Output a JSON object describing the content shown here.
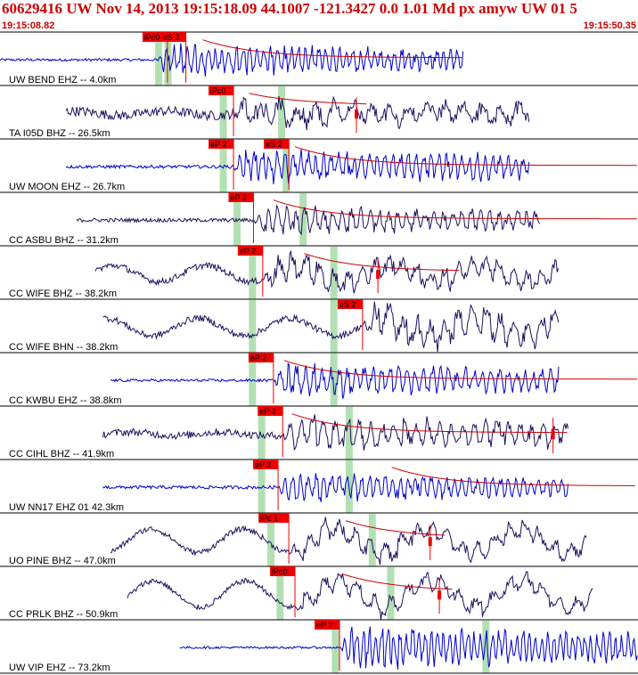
{
  "header": {
    "event_line": "60629416 UW Nov 14, 2013 19:15:18.09    44.1007 -121.3427  0.0 1.01 Md px amyw UW 01    5",
    "start_time": "19:15:08.82",
    "end_time": "19:15:50.35"
  },
  "colors": {
    "header_text": "#cc0000",
    "pick_box": "#ee0000",
    "pick_line": "#ee0000",
    "coda_curve": "#cc0000",
    "window_band": "#b3e0b3",
    "trace_vertical": "#0000cc",
    "trace_long_period": "#201060",
    "divider": "#000000"
  },
  "chart_data": {
    "type": "seismogram-record-section",
    "time_range": [
      "19:15:08.82",
      "19:15:50.35"
    ],
    "time_span_seconds": 41.53,
    "channels": [
      {
        "label": "UW BEND EHZ -- 4.0km",
        "color": "trace_vertical",
        "start_s": 0.0,
        "end_s": 30.2,
        "onset_s": 10.2,
        "amp": 0.75,
        "noise": 0.05,
        "period_s": 0.45,
        "lowfreq": 0,
        "picks": [
          {
            "text": "iPc0",
            "t_s": 10.9
          },
          {
            "text": "eS 2",
            "t_s": 12.1
          }
        ],
        "bands_s": [
          10.1,
          10.7
        ],
        "coda_start_s": 13.2,
        "coda_level": 0.08,
        "coda_end_s": 30.2
      },
      {
        "label": "TA I05D BHZ -- 26.5km",
        "color": "trace_long_period",
        "start_s": 4.3,
        "end_s": 34.5,
        "onset_s": 15.2,
        "amp": 0.55,
        "noise": 0.18,
        "period_s": 1.2,
        "lowfreq": 0.15,
        "picks": [
          {
            "text": "iPc0",
            "t_s": 15.2
          }
        ],
        "bands_s": [
          14.3,
          18.1
        ],
        "coda_start_s": 16.2,
        "coda_level": 0.3,
        "coda_end_s": 24.0,
        "marker_s": 23.2
      },
      {
        "label": "UW MOON EHZ -- 26.7km",
        "color": "trace_vertical",
        "start_s": 4.3,
        "end_s": 34.5,
        "onset_s": 15.2,
        "amp": 0.75,
        "noise": 0.06,
        "period_s": 0.5,
        "lowfreq": 0,
        "picks": [
          {
            "text": "eP 2",
            "t_s": 15.2
          },
          {
            "text": "eS 2",
            "t_s": 18.8
          }
        ],
        "bands_s": [
          14.3,
          18.4
        ],
        "coda_start_s": 19.2,
        "coda_level": 0.05,
        "coda_end_s": 41.5
      },
      {
        "label": "CC ASBU BHZ -- 31.2km",
        "color": "trace_long_period",
        "start_s": 5.0,
        "end_s": 35.2,
        "onset_s": 16.5,
        "amp": 0.6,
        "noise": 0.07,
        "period_s": 0.6,
        "lowfreq": 0,
        "picks": [
          {
            "text": "eP 2",
            "t_s": 16.5
          }
        ],
        "bands_s": [
          15.2,
          19.5
        ],
        "coda_start_s": 17.8,
        "coda_level": 0.05,
        "coda_end_s": 41.5
      },
      {
        "label": "CC WIFE BHZ -- 38.2km",
        "color": "trace_long_period",
        "start_s": 6.2,
        "end_s": 36.4,
        "onset_s": 17.1,
        "amp": 0.6,
        "noise": 0.12,
        "period_s": 0.9,
        "lowfreq": 0.55,
        "picks": [
          {
            "text": "eP 2",
            "t_s": 17.1
          }
        ],
        "bands_s": [
          16.2,
          21.5
        ],
        "coda_start_s": 19.8,
        "coda_level": 0.08,
        "coda_end_s": 30.0,
        "marker_s": 24.6
      },
      {
        "label": "CC WIFE BHN -- 38.2km",
        "color": "trace_long_period",
        "start_s": 6.7,
        "end_s": 36.4,
        "onset_s": 23.6,
        "amp": 0.75,
        "noise": 0.12,
        "period_s": 0.9,
        "lowfreq": 0.6,
        "picks": [
          {
            "text": "eS 2",
            "t_s": 23.6
          }
        ],
        "bands_s": [
          16.2,
          21.5
        ],
        "coda_start_s": 0,
        "coda_level": 0,
        "coda_end_s": 0
      },
      {
        "label": "CC KWBU EHZ -- 38.8km",
        "color": "trace_vertical",
        "start_s": 7.2,
        "end_s": 36.4,
        "onset_s": 17.8,
        "amp": 0.75,
        "noise": 0.05,
        "period_s": 0.55,
        "lowfreq": 0,
        "picks": [
          {
            "text": "eP 2",
            "t_s": 17.8
          }
        ],
        "bands_s": [
          16.2,
          21.5
        ],
        "coda_start_s": 18.5,
        "coda_level": 0.05,
        "coda_end_s": 41.5
      },
      {
        "label": "CC CIHL BHZ -- 41.9km",
        "color": "trace_long_period",
        "start_s": 6.7,
        "end_s": 37.0,
        "onset_s": 18.4,
        "amp": 0.7,
        "noise": 0.14,
        "period_s": 0.75,
        "lowfreq": 0.12,
        "picks": [
          {
            "text": "eP 2",
            "t_s": 18.4
          }
        ],
        "bands_s": [
          16.8,
          22.5
        ],
        "coda_start_s": 19.0,
        "coda_level": 0.05,
        "coda_end_s": 37.0,
        "marker_s": 36.0
      },
      {
        "label": "UW NN17 EHZ 01 42.3km",
        "color": "trace_vertical",
        "start_s": 6.7,
        "end_s": 37.0,
        "onset_s": 18.1,
        "amp": 0.6,
        "noise": 0.06,
        "period_s": 0.5,
        "lowfreq": 0,
        "picks": [
          {
            "text": "eP 2",
            "t_s": 18.1
          }
        ],
        "bands_s": [
          16.8,
          22.5
        ],
        "coda_start_s": 25.5,
        "coda_level": 0.05,
        "coda_end_s": 41.5
      },
      {
        "label": "UO PINE BHZ -- 47.0km",
        "color": "trace_long_period",
        "start_s": 7.2,
        "end_s": 38.2,
        "onset_s": 18.8,
        "amp": 0.55,
        "noise": 0.1,
        "period_s": 1.0,
        "lowfreq": 0.8,
        "picks": [
          {
            "text": "iPc 1",
            "t_s": 18.8
          }
        ],
        "bands_s": [
          17.4,
          24.0
        ],
        "coda_start_s": 22.5,
        "coda_level": 0.1,
        "coda_end_s": 29.0,
        "marker_s": 28.0
      },
      {
        "label": "CC PRLK BHZ -- 50.9km",
        "color": "trace_long_period",
        "start_s": 8.3,
        "end_s": 38.6,
        "onset_s": 19.2,
        "amp": 0.5,
        "noise": 0.1,
        "period_s": 1.1,
        "lowfreq": 0.9,
        "picks": [
          {
            "text": "iPc0",
            "t_s": 19.2
          }
        ],
        "bands_s": [
          18.0,
          25.2
        ],
        "coda_start_s": 22.3,
        "coda_level": 0.1,
        "coda_end_s": 29.5,
        "marker_s": 28.6
      },
      {
        "label": "UW VIP EHZ -- 73.2km",
        "color": "trace_vertical",
        "start_s": 11.7,
        "end_s": 41.5,
        "onset_s": 22.1,
        "amp": 0.95,
        "noise": 0.04,
        "period_s": 0.4,
        "lowfreq": 0,
        "picks": [
          {
            "text": "eP 2",
            "t_s": 22.1
          }
        ],
        "bands_s": [
          21.6,
          31.4
        ],
        "coda_start_s": 0,
        "coda_level": 0,
        "coda_end_s": 0
      }
    ]
  }
}
